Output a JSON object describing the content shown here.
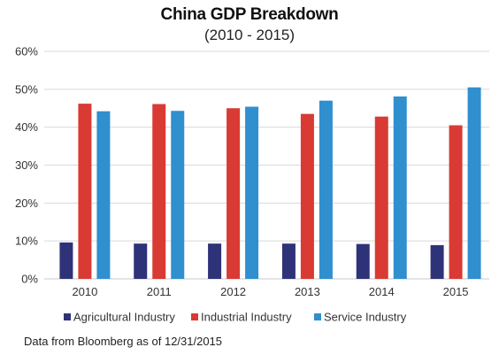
{
  "chart_data": {
    "type": "bar",
    "title": "China GDP Breakdown",
    "subtitle": "(2010 - 2015)",
    "categories": [
      "2010",
      "2011",
      "2012",
      "2013",
      "2014",
      "2015"
    ],
    "series": [
      {
        "name": "Agricultural Industry",
        "color": "#2e3278",
        "values": [
          9.6,
          9.3,
          9.3,
          9.3,
          9.2,
          8.9
        ]
      },
      {
        "name": "Industrial Industry",
        "color": "#d93a34",
        "values": [
          46.2,
          46.1,
          45.0,
          43.5,
          42.8,
          40.5
        ]
      },
      {
        "name": "Service Industry",
        "color": "#2f8fcf",
        "values": [
          44.2,
          44.3,
          45.4,
          47.0,
          48.1,
          50.5
        ]
      }
    ],
    "ylim": [
      0,
      60
    ],
    "yticks": [
      "0%",
      "10%",
      "20%",
      "30%",
      "40%",
      "50%",
      "60%"
    ],
    "grid": true,
    "legend_position": "bottom",
    "source_note": "Data from Bloomberg as of 12/31/2015"
  }
}
